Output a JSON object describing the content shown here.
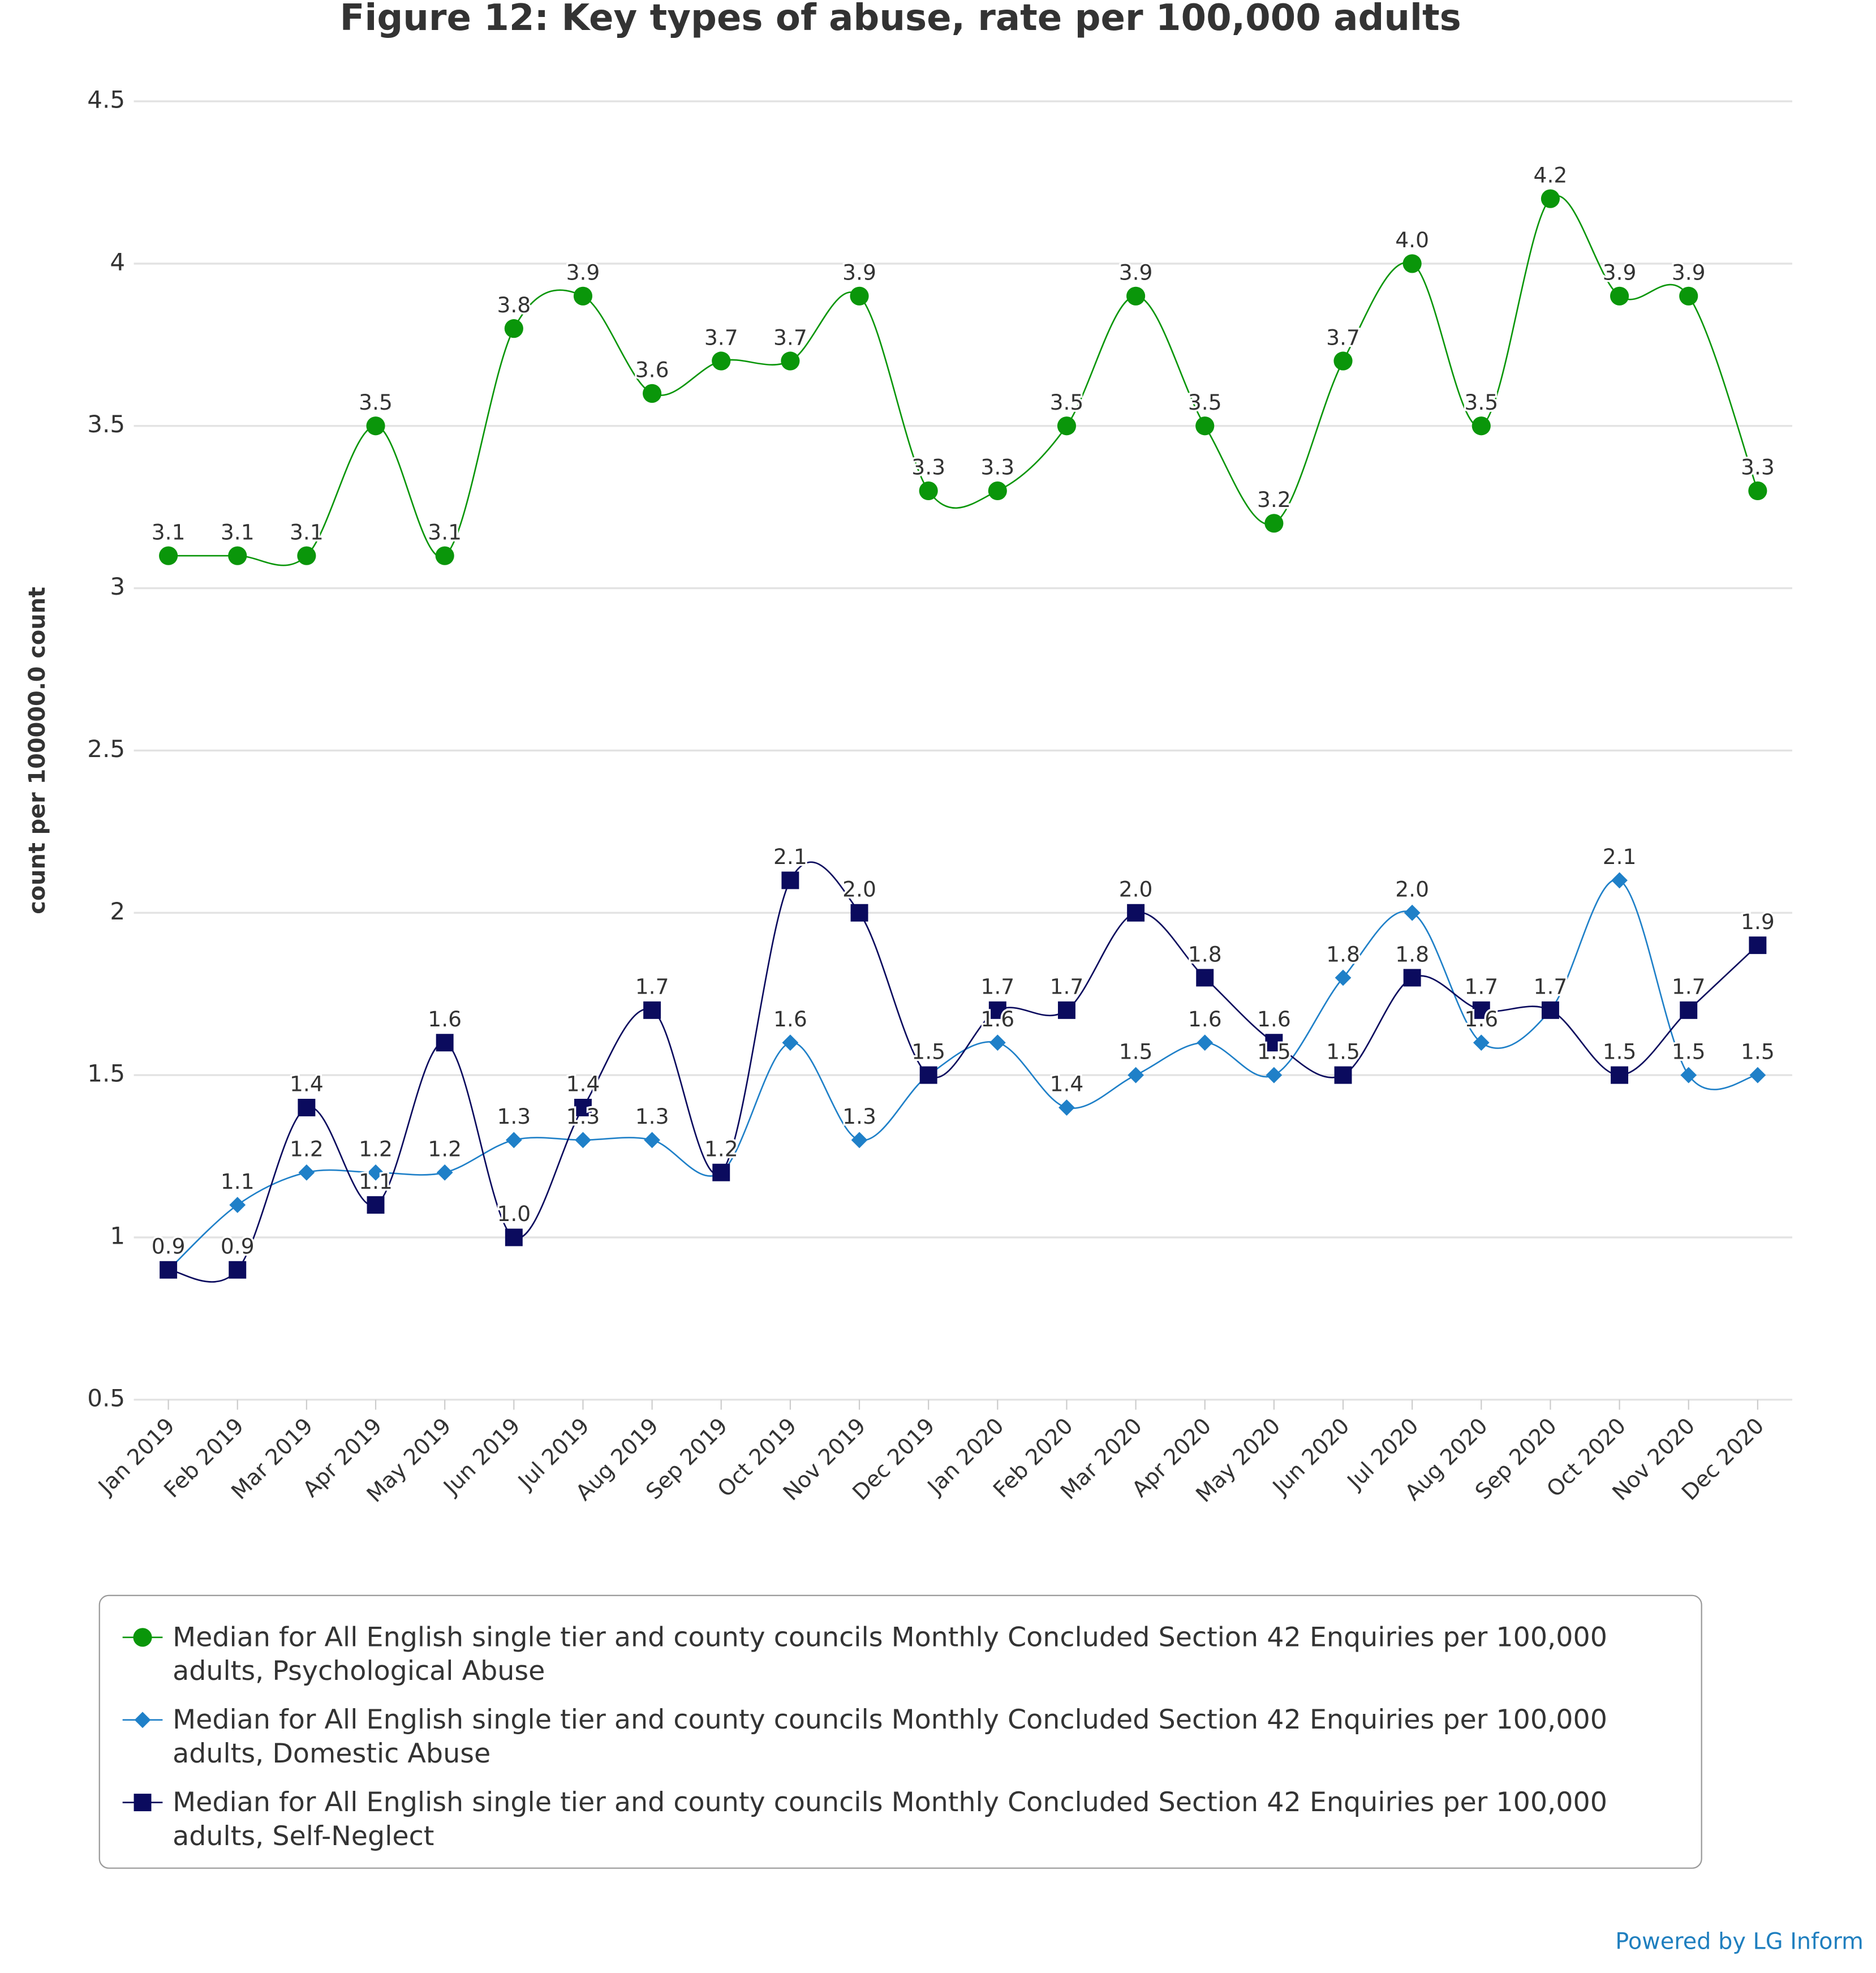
{
  "chart_data": {
    "type": "line",
    "title": "Figure 12: Key types of abuse, rate per 100,000 adults",
    "y_label": "count per 100000.0 count",
    "credit": "Powered by LG Inform",
    "categories": [
      "Jan 2019",
      "Feb 2019",
      "Mar 2019",
      "Apr 2019",
      "May 2019",
      "Jun 2019",
      "Jul 2019",
      "Aug 2019",
      "Sep 2019",
      "Oct 2019",
      "Nov 2019",
      "Dec 2019",
      "Jan 2020",
      "Feb 2020",
      "Mar 2020",
      "Apr 2020",
      "May 2020",
      "Jun 2020",
      "Jul 2020",
      "Aug 2020",
      "Sep 2020",
      "Oct 2020",
      "Nov 2020",
      "Dec 2020"
    ],
    "series": [
      {
        "name": "Median for All English single tier and county councils Monthly Concluded Section 42 Enquiries per 100,000 adults, Psychological Abuse",
        "color": "#0a960a",
        "marker": "circle",
        "values": [
          3.1,
          3.1,
          3.1,
          3.5,
          3.1,
          3.8,
          3.9,
          3.6,
          3.7,
          3.7,
          3.9,
          3.3,
          3.3,
          3.5,
          3.9,
          3.5,
          3.2,
          3.7,
          4.0,
          3.5,
          4.2,
          3.9,
          3.9,
          3.3
        ],
        "value_labels": [
          "3.1",
          "3.1",
          "3.1",
          "3.5",
          "3.1",
          "3.8",
          "3.9",
          "3.6",
          "3.7",
          "3.7",
          "3.9",
          "3.3",
          "3.3",
          "3.5",
          "3.9",
          "3.5",
          "3.2",
          "3.7",
          "4.0",
          "3.5",
          "4.2",
          "3.9",
          "3.9",
          "3.3"
        ]
      },
      {
        "name": "Median for All English single tier and county councils Monthly Concluded Section 42 Enquiries per 100,000 adults, Domestic Abuse",
        "color": "#1f80c8",
        "marker": "diamond",
        "values": [
          0.9,
          1.1,
          1.2,
          1.2,
          1.2,
          1.3,
          1.3,
          1.3,
          1.2,
          1.6,
          1.3,
          1.5,
          1.6,
          1.4,
          1.5,
          1.6,
          1.5,
          1.8,
          2.0,
          1.6,
          1.7,
          2.1,
          1.5,
          1.5
        ],
        "value_labels": [
          "0.9",
          "1.1",
          "1.2",
          "1.2",
          "1.2",
          "1.3",
          "1.3",
          "1.3",
          "1.2",
          "1.6",
          "1.3",
          "1.5",
          "1.6",
          "1.4",
          "1.5",
          "1.6",
          "1.5",
          "1.8",
          "2.0",
          "1.6",
          "1.7",
          "2.1",
          "1.5",
          "1.5"
        ]
      },
      {
        "name": "Median for All English single tier and county councils Monthly Concluded Section 42 Enquiries per 100,000 adults, Self-Neglect",
        "color": "#0b0b5e",
        "marker": "square",
        "values": [
          0.9,
          0.9,
          1.4,
          1.1,
          1.6,
          1.0,
          1.4,
          1.7,
          1.2,
          2.1,
          2.0,
          1.5,
          1.7,
          1.7,
          2.0,
          1.8,
          1.6,
          1.5,
          1.8,
          1.7,
          1.7,
          1.5,
          1.7,
          1.9
        ],
        "value_labels": [
          "0.9",
          "0.9",
          "1.4",
          "1.1",
          "1.6",
          "1.0",
          "1.4",
          "1.7",
          "1.2",
          "2.1",
          "2.0",
          "1.5",
          "1.7",
          "1.7",
          "2.0",
          "1.8",
          "1.6",
          "1.5",
          "1.8",
          "1.7",
          "1.7",
          "1.5",
          "1.7",
          "1.9"
        ]
      }
    ],
    "ylim": [
      0.5,
      4.5
    ],
    "yticks": [
      0.5,
      1,
      1.5,
      2,
      2.5,
      3,
      3.5,
      4,
      4.5
    ],
    "grid": true,
    "smooth": true,
    "legend": "bottom"
  }
}
